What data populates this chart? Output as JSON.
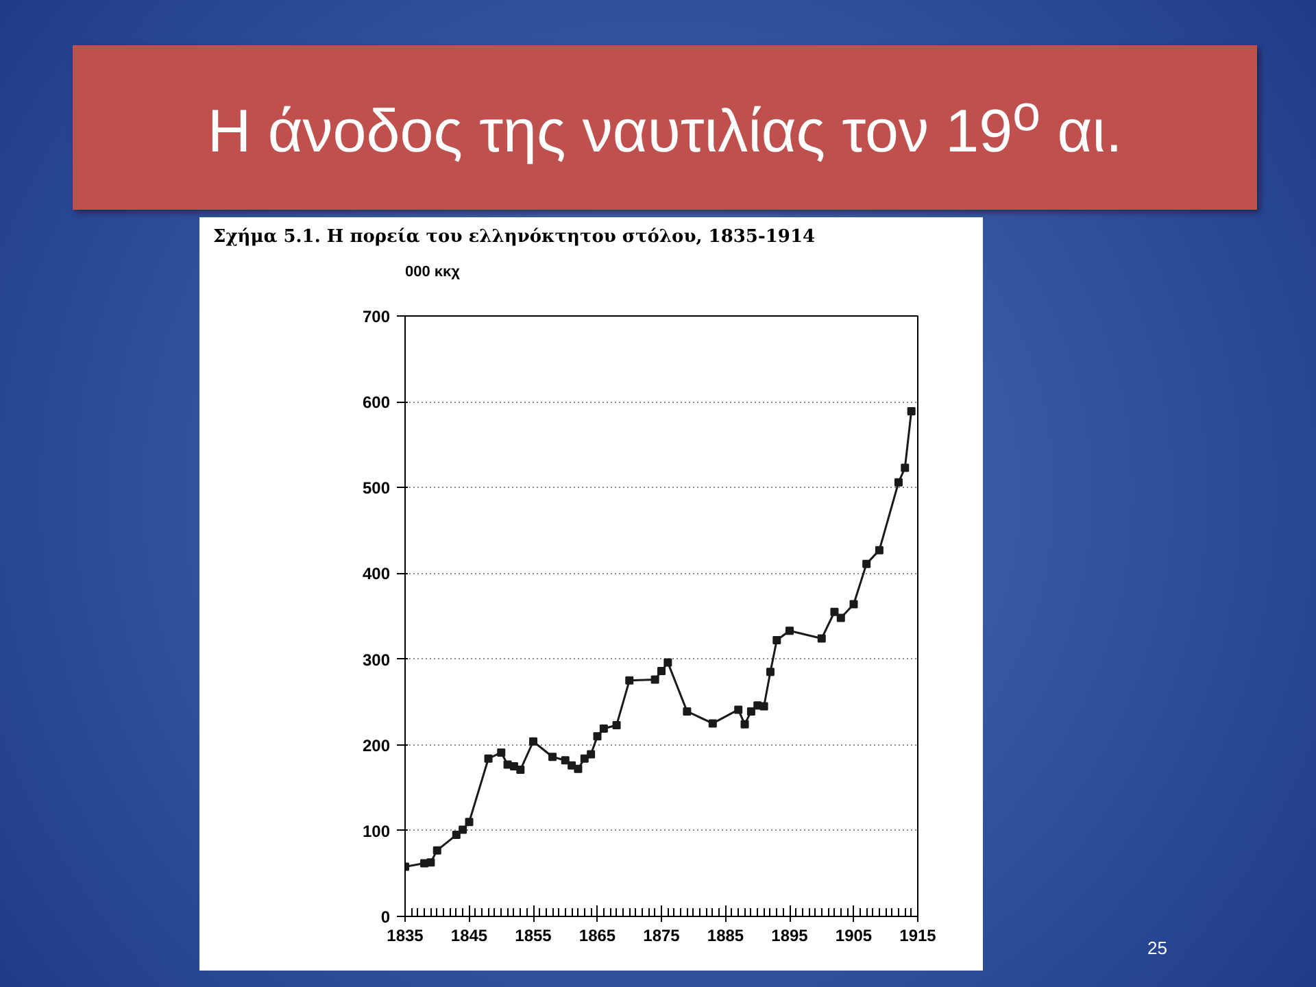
{
  "chart_data": {
    "type": "line",
    "title": "Η άνοδος της ναυτιλίας τον 19$^{ο}$ αι.",
    "subtitle": "Σχήμα 5.1. Η πορεία του ελληνόκτητου στόλου, 1835-1914",
    "ylabel": "000 κκχ",
    "annotations": [
      "25"
    ],
    "x": [
      1835,
      1838,
      1839,
      1840,
      1843,
      1844,
      1845,
      1848,
      1850,
      1851,
      1852,
      1853,
      1855,
      1858,
      1860,
      1861,
      1862,
      1863,
      1864,
      1865,
      1866,
      1868,
      1870,
      1874,
      1875,
      1876,
      1879,
      1883,
      1887,
      1888,
      1889,
      1890,
      1891,
      1892,
      1893,
      1895,
      1900,
      1902,
      1903,
      1905,
      1907,
      1909,
      1912,
      1913,
      1914
    ],
    "series": [
      {
        "color": "#1a1a1a",
        "values": [
          58,
          62,
          63,
          77,
          95,
          101,
          110,
          184,
          191,
          177,
          175,
          171,
          204,
          186,
          182,
          176,
          172,
          184,
          189,
          210,
          219,
          223,
          275,
          276,
          286,
          296,
          239,
          225,
          241,
          224,
          239,
          246,
          245,
          285,
          322,
          333,
          324,
          355,
          348,
          364,
          411,
          427,
          506,
          523,
          589
        ]
      }
    ],
    "xlim": [
      1835,
      1915
    ],
    "xticks": [
      1835,
      1845,
      1855,
      1865,
      1875,
      1885,
      1895,
      1905,
      1915
    ],
    "ylim": [
      0,
      700
    ],
    "yticks": [
      0,
      100,
      200,
      300,
      400,
      500,
      600,
      700
    ],
    "grid": "y",
    "marker": "square",
    "line_style": "solid"
  }
}
